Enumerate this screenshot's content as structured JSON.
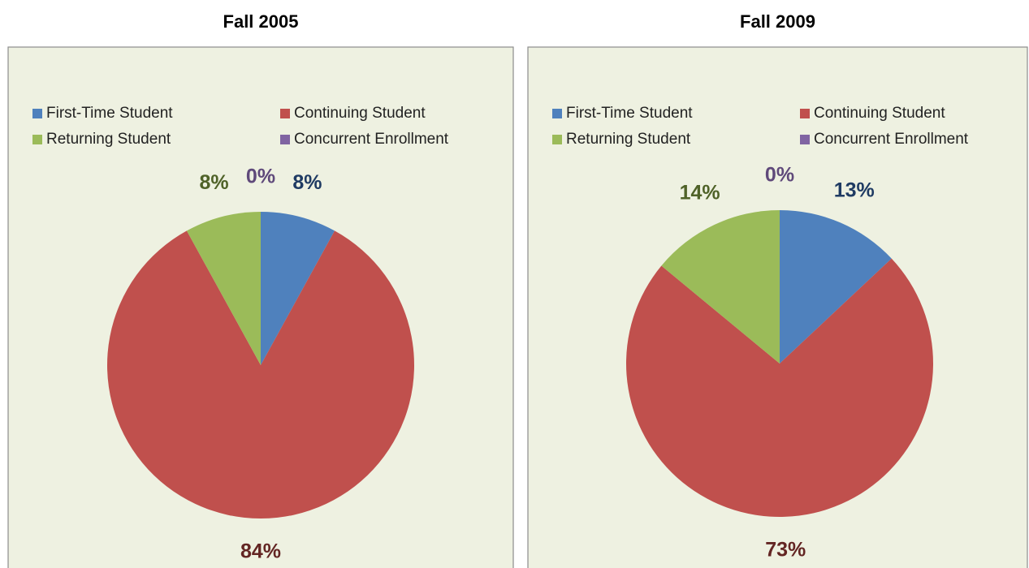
{
  "chart_data": [
    {
      "type": "pie",
      "title": "Fall 2005",
      "categories": [
        "First-Time Student",
        "Continuing Student",
        "Returning Student",
        "Concurrent Enrollment"
      ],
      "values": [
        8,
        84,
        8,
        0
      ],
      "value_labels": [
        "8%",
        "84%",
        "8%",
        "0%"
      ],
      "colors": [
        "#4f81bd",
        "#c0504d",
        "#9bbb59",
        "#8064a2"
      ],
      "label_colors": [
        "#1f3b63",
        "#632523",
        "#4f6228",
        "#5f497a"
      ],
      "legend": "top"
    },
    {
      "type": "pie",
      "title": "Fall 2009",
      "categories": [
        "First-Time Student",
        "Continuing Student",
        "Returning Student",
        "Concurrent Enrollment"
      ],
      "values": [
        13,
        73,
        14,
        0
      ],
      "value_labels": [
        "13%",
        "73%",
        "14%",
        "0%"
      ],
      "colors": [
        "#4f81bd",
        "#c0504d",
        "#9bbb59",
        "#8064a2"
      ],
      "label_colors": [
        "#1f3b63",
        "#632523",
        "#4f6228",
        "#5f497a"
      ],
      "legend": "top"
    }
  ]
}
